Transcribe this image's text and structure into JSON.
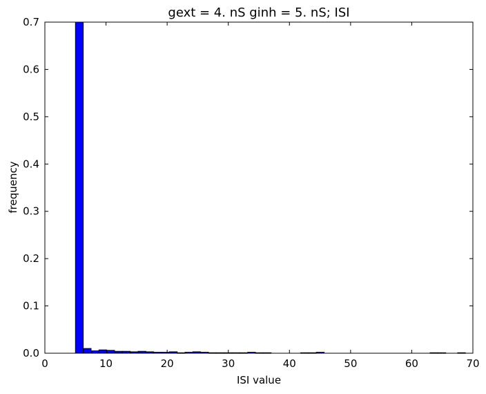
{
  "chart_data": {
    "type": "bar",
    "title": "gext = 4. nS ginh = 5. nS; ISI",
    "xlabel": "ISI value",
    "ylabel": "frequency",
    "xlim": [
      0,
      70
    ],
    "ylim": [
      0,
      0.7
    ],
    "xticks": [
      "0",
      "10",
      "20",
      "30",
      "40",
      "50",
      "60",
      "70"
    ],
    "yticks": [
      "0.0",
      "0.1",
      "0.2",
      "0.3",
      "0.4",
      "0.5",
      "0.6",
      "0.7"
    ],
    "bin_width": 1.28,
    "bin_starts": [
      5.0,
      6.28,
      7.56,
      8.84,
      10.12,
      11.4,
      12.68,
      13.96,
      15.24,
      16.52,
      17.8,
      19.08,
      20.36,
      21.64,
      22.92,
      24.2,
      25.48,
      26.76,
      28.04,
      29.32,
      30.6,
      31.88,
      33.16,
      34.44,
      35.72,
      41.84,
      43.12,
      44.4,
      63.0,
      64.28,
      67.5
    ],
    "values": [
      0.7,
      0.01,
      0.005,
      0.007,
      0.006,
      0.004,
      0.004,
      0.003,
      0.004,
      0.003,
      0.002,
      0.002,
      0.003,
      0.001,
      0.002,
      0.003,
      0.002,
      0.001,
      0.001,
      0.001,
      0.001,
      0.001,
      0.002,
      0.001,
      0.001,
      0.001,
      0.001,
      0.002,
      0.001,
      0.001,
      0.001
    ],
    "bar_color": "#0000ff",
    "edge_color": "#000000",
    "grid": false,
    "legend": "none"
  }
}
